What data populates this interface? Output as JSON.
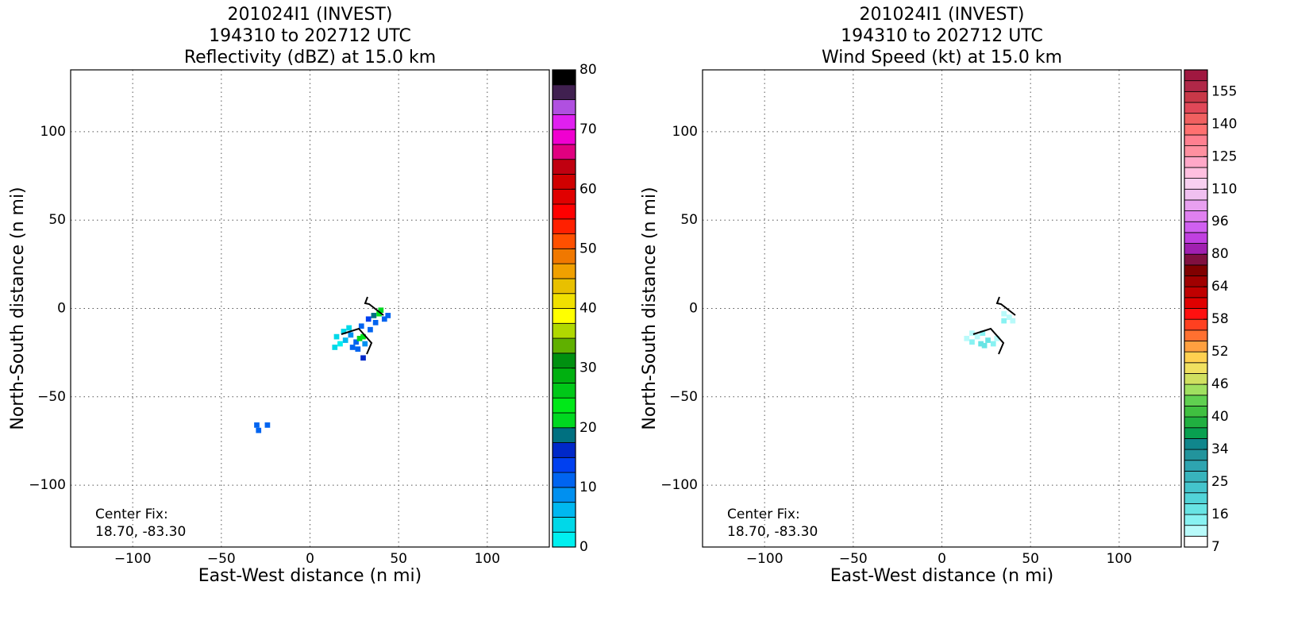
{
  "chart_data": [
    {
      "type": "heatmap",
      "title_lines": [
        "201024I1 (INVEST)",
        "194310 to 202712 UTC",
        "Reflectivity (dBZ) at 15.0 km"
      ],
      "xlabel": "East-West distance (n mi)",
      "ylabel": "North-South distance (n mi)",
      "xlim": [
        -135,
        135
      ],
      "ylim": [
        -135,
        135
      ],
      "xticks": [
        {
          "value": -100,
          "label": "−100"
        },
        {
          "value": -50,
          "label": "−50"
        },
        0,
        50,
        100
      ],
      "yticks": [
        {
          "value": -100,
          "label": "−100"
        },
        {
          "value": -50,
          "label": "−50"
        },
        0,
        50,
        100
      ],
      "grid": true,
      "annotation": [
        "Center Fix:",
        "18.70, -83.30"
      ],
      "colorbar": {
        "lim": [
          0,
          80
        ],
        "ticks": [
          0,
          10,
          20,
          30,
          40,
          50,
          60,
          70,
          80
        ],
        "colors": [
          "#00f0f0",
          "#00d8e8",
          "#00b8f0",
          "#0090f0",
          "#0064f0",
          "#0040f0",
          "#0028c8",
          "#007080",
          "#00d820",
          "#00e818",
          "#00c818",
          "#00b010",
          "#009010",
          "#60b000",
          "#b0d800",
          "#ffff00",
          "#f0e000",
          "#e8c000",
          "#f0a000",
          "#f07800",
          "#ff5000",
          "#ff2000",
          "#ff0000",
          "#e00000",
          "#d00000",
          "#c00010",
          "#e00080",
          "#f000d0",
          "#e020f0",
          "#b050e0",
          "#402050",
          "#000000"
        ]
      },
      "cells": {
        "x": [
          14,
          17,
          20,
          15,
          19,
          23,
          26,
          24,
          28,
          30,
          31,
          34,
          37,
          36,
          39,
          40,
          42,
          33,
          29,
          22,
          30,
          -30,
          -29,
          -24,
          44,
          27
        ],
        "y": [
          -22,
          -20,
          -18,
          -16,
          -13,
          -15,
          -19,
          -22,
          -17,
          -16,
          -20,
          -12,
          -8,
          -4,
          -3,
          -1,
          -6,
          -6,
          -10,
          -11,
          -28,
          -66,
          -69,
          -66,
          -4,
          -23
        ],
        "values": [
          3,
          2,
          5,
          3,
          4,
          8,
          10,
          12,
          20,
          24,
          9,
          11,
          12,
          18,
          23,
          21,
          10,
          14,
          12,
          3,
          16,
          10,
          11,
          10,
          11,
          11
        ]
      }
    },
    {
      "type": "heatmap",
      "title_lines": [
        "201024I1 (INVEST)",
        "194310 to 202712 UTC",
        "Wind Speed (kt) at 15.0 km"
      ],
      "xlabel": "East-West distance (n mi)",
      "ylabel": "North-South distance (n mi)",
      "xlim": [
        -135,
        135
      ],
      "ylim": [
        -135,
        135
      ],
      "xticks": [
        {
          "value": -100,
          "label": "−100"
        },
        {
          "value": -50,
          "label": "−50"
        },
        0,
        50,
        100
      ],
      "yticks": [
        {
          "value": -100,
          "label": "−100"
        },
        {
          "value": -50,
          "label": "−50"
        },
        0,
        50,
        100
      ],
      "grid": true,
      "annotation": [
        "Center Fix:",
        "18.70, -83.30"
      ],
      "colorbar": {
        "ticks": [
          7,
          16,
          25,
          34,
          40,
          46,
          52,
          58,
          64,
          80,
          96,
          110,
          125,
          140,
          155
        ],
        "colors": [
          "#ffffff",
          "#b8fafa",
          "#88f2f2",
          "#68e4e4",
          "#52d4d8",
          "#44c4cc",
          "#38b4bc",
          "#2ea4b0",
          "#22949c",
          "#10868c",
          "#08a050",
          "#20b040",
          "#40c040",
          "#60d050",
          "#a0e060",
          "#d0e060",
          "#f0e060",
          "#ffd050",
          "#ffa040",
          "#ff7030",
          "#ff4020",
          "#ff1010",
          "#e00000",
          "#c00000",
          "#a00000",
          "#800000",
          "#801040",
          "#a020b0",
          "#c040e0",
          "#d060f0",
          "#e080f0",
          "#e8a0f0",
          "#f0c0f0",
          "#f8d0f0",
          "#ffc0e0",
          "#ffa8c8",
          "#ff90a0",
          "#ff8090",
          "#ff7070",
          "#f06060",
          "#e04858",
          "#c83848",
          "#b02848",
          "#a01840"
        ]
      },
      "cells": {
        "x": [
          14,
          17,
          20,
          23,
          26,
          24,
          29,
          31,
          22,
          35,
          38,
          40,
          35,
          17
        ],
        "y": [
          -17,
          -19,
          -16,
          -14,
          -18,
          -21,
          -20,
          -17,
          -20,
          -3,
          -5,
          -7,
          -7,
          -14
        ],
        "values": [
          12,
          14,
          13,
          15,
          17,
          18,
          14,
          12,
          16,
          11,
          12,
          13,
          14,
          11
        ]
      }
    }
  ]
}
